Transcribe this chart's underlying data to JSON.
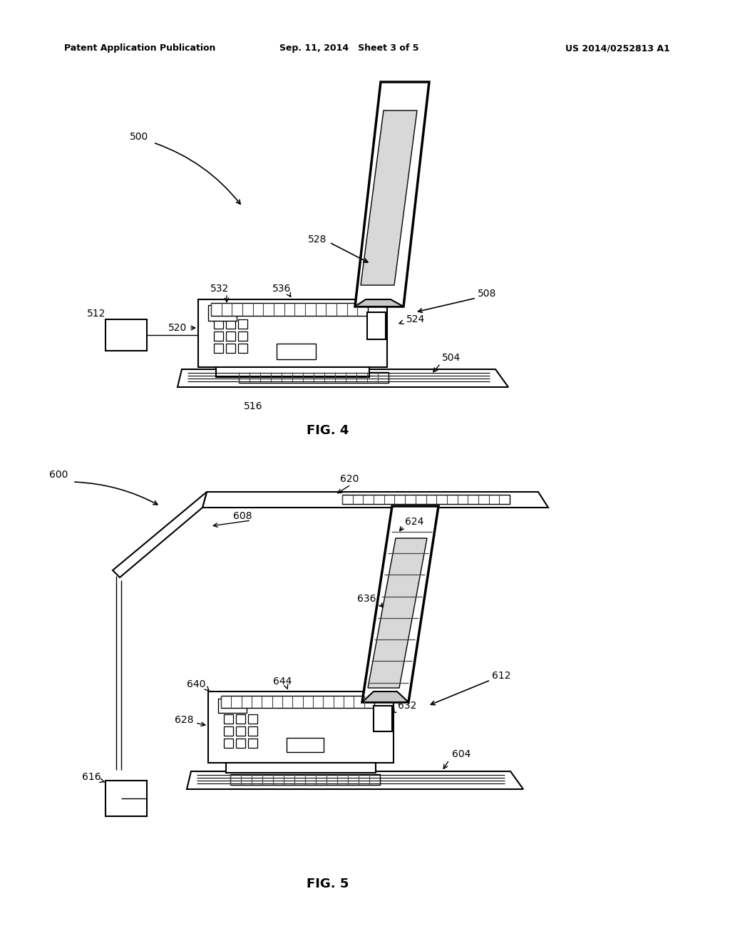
{
  "bg_color": "#ffffff",
  "line_color": "#000000",
  "header_left": "Patent Application Publication",
  "header_mid": "Sep. 11, 2014   Sheet 3 of 5",
  "header_right": "US 2014/0252813 A1",
  "fig4_label": "FIG. 4",
  "fig5_label": "FIG. 5"
}
